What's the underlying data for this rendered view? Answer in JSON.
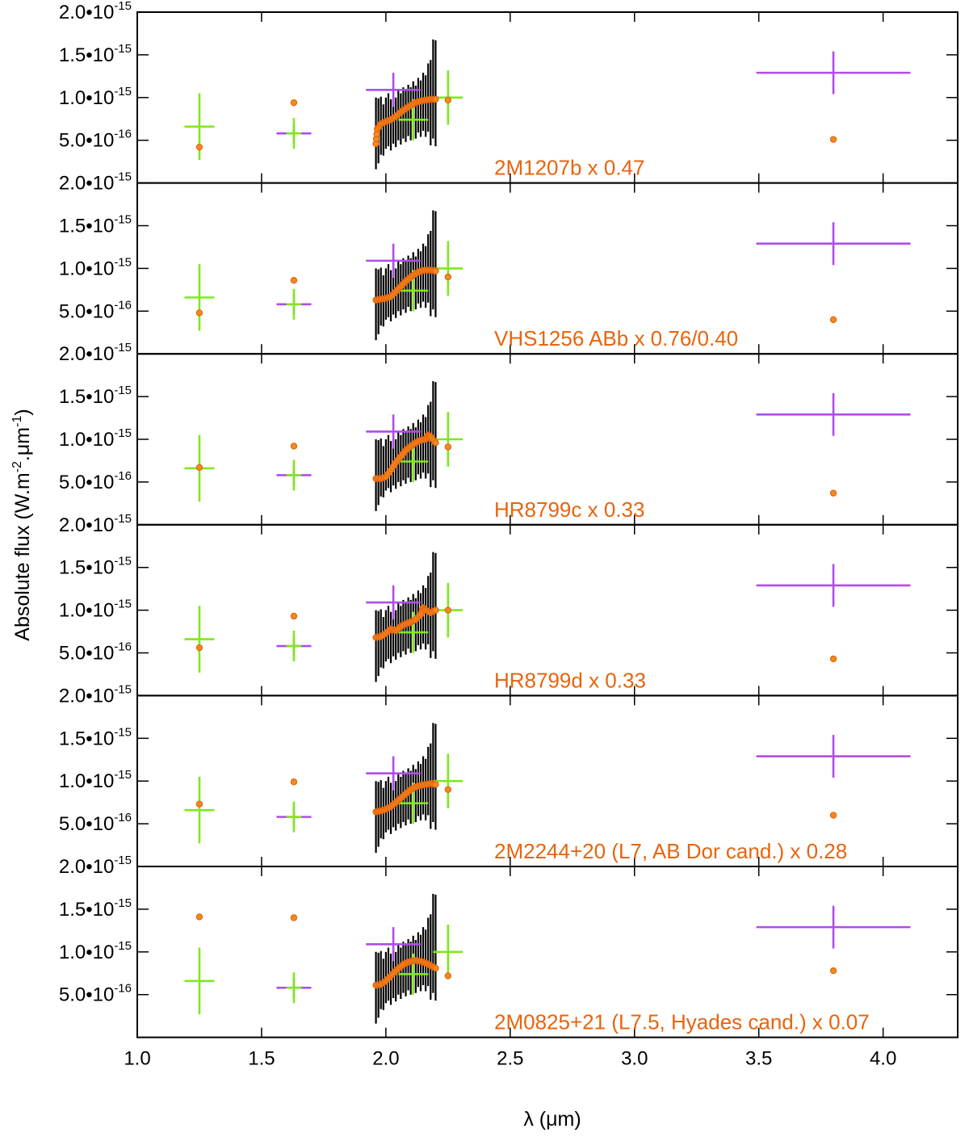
{
  "chart_data": {
    "type": "scatter",
    "xlabel": "λ (μm)",
    "ylabel_main": "Absolute flux (W.m",
    "ylabel_exp1": "-2",
    "ylabel_mid": ".μm",
    "ylabel_exp2": "-1",
    "ylabel_end": ")",
    "xlim": [
      1.0,
      4.3
    ],
    "ylim": [
      0,
      2e-15
    ],
    "x_ticks": [
      {
        "v": 1.0,
        "label": "1.0"
      },
      {
        "v": 1.5,
        "label": "1.5"
      },
      {
        "v": 2.0,
        "label": "2.0"
      },
      {
        "v": 2.5,
        "label": "2.5"
      },
      {
        "v": 3.0,
        "label": "3.0"
      },
      {
        "v": 3.5,
        "label": "3.5"
      },
      {
        "v": 4.0,
        "label": "4.0"
      }
    ],
    "y_ticks": [
      {
        "v": 5e-16,
        "mant": "5.0•10",
        "exp": "-16"
      },
      {
        "v": 1e-15,
        "mant": "1.0•10",
        "exp": "-15"
      },
      {
        "v": 1.5e-15,
        "mant": "1.5•10",
        "exp": "-15"
      },
      {
        "v": 2e-15,
        "mant": "2.0•10",
        "exp": "-15"
      }
    ],
    "colors": {
      "green": "#7fe81e",
      "purple": "#b04ce8",
      "orange": "#e8640e",
      "orange_fill": "#f08c1e",
      "black": "#000000"
    },
    "green_points": [
      {
        "x": 1.25,
        "xerr": 0.06,
        "y": 6.6e-16,
        "yerr": 3.9e-16
      },
      {
        "x": 1.63,
        "xerr": 0.03,
        "y": 5.8e-16,
        "yerr": 1.8e-16
      },
      {
        "x": 2.11,
        "xerr": 0.06,
        "y": 7.4e-16,
        "yerr": 2.4e-16
      },
      {
        "x": 2.25,
        "xerr": 0.06,
        "y": 1e-15,
        "yerr": 3.2e-16
      }
    ],
    "purple_points": [
      {
        "x": 1.63,
        "xerr": 0.07,
        "y": 5.8e-16,
        "yerr": 1.2e-16
      },
      {
        "x": 2.03,
        "xerr": 0.11,
        "y": 1.09e-15,
        "yerr": 2e-16
      },
      {
        "x": 3.8,
        "xerr": 0.31,
        "y": 1.29e-15,
        "yerr": 2.5e-16
      }
    ],
    "spectrum": [
      {
        "x": 1.96,
        "y": 5.8e-16,
        "e": 4.2e-16
      },
      {
        "x": 1.97,
        "y": 6.1e-16,
        "e": 3.8e-16
      },
      {
        "x": 1.98,
        "y": 6.7e-16,
        "e": 3.4e-16
      },
      {
        "x": 1.99,
        "y": 6.2e-16,
        "e": 3e-16
      },
      {
        "x": 2.0,
        "y": 7e-16,
        "e": 3e-16
      },
      {
        "x": 2.01,
        "y": 7.4e-16,
        "e": 3.1e-16
      },
      {
        "x": 2.02,
        "y": 6.8e-16,
        "e": 3e-16
      },
      {
        "x": 2.03,
        "y": 7.6e-16,
        "e": 3e-16
      },
      {
        "x": 2.04,
        "y": 7.1e-16,
        "e": 2.9e-16
      },
      {
        "x": 2.05,
        "y": 8e-16,
        "e": 3e-16
      },
      {
        "x": 2.06,
        "y": 7.5e-16,
        "e": 3e-16
      },
      {
        "x": 2.07,
        "y": 8.2e-16,
        "e": 3e-16
      },
      {
        "x": 2.08,
        "y": 7.8e-16,
        "e": 3e-16
      },
      {
        "x": 2.09,
        "y": 8.5e-16,
        "e": 3e-16
      },
      {
        "x": 2.1,
        "y": 8.1e-16,
        "e": 3.1e-16
      },
      {
        "x": 2.11,
        "y": 8.8e-16,
        "e": 3.1e-16
      },
      {
        "x": 2.12,
        "y": 8.3e-16,
        "e": 3.1e-16
      },
      {
        "x": 2.13,
        "y": 9.1e-16,
        "e": 3.2e-16
      },
      {
        "x": 2.14,
        "y": 8.7e-16,
        "e": 3.3e-16
      },
      {
        "x": 2.15,
        "y": 9.5e-16,
        "e": 3.4e-16
      },
      {
        "x": 2.16,
        "y": 9e-16,
        "e": 3.6e-16
      },
      {
        "x": 2.17,
        "y": 1e-15,
        "e": 4e-16
      },
      {
        "x": 2.18,
        "y": 9.4e-16,
        "e": 5e-16
      },
      {
        "x": 2.19,
        "y": 1.1e-15,
        "e": 5.8e-16
      },
      {
        "x": 2.2,
        "y": 1.05e-15,
        "e": 6.2e-16
      }
    ],
    "panels": [
      {
        "label": "2M1207b x 0.47",
        "model": [
          [
            1.96,
            4.6e-16
          ],
          [
            1.965,
            6.3e-16
          ],
          [
            1.98,
            6.9e-16
          ],
          [
            2.0,
            7.2e-16
          ],
          [
            2.02,
            7.4e-16
          ],
          [
            2.04,
            7.8e-16
          ],
          [
            2.06,
            8.3e-16
          ],
          [
            2.08,
            8.7e-16
          ],
          [
            2.1,
            9.1e-16
          ],
          [
            2.12,
            9.4e-16
          ],
          [
            2.14,
            9.6e-16
          ],
          [
            2.16,
            9.7e-16
          ],
          [
            2.18,
            9.8e-16
          ],
          [
            2.2,
            9.8e-16
          ]
        ],
        "phot": [
          [
            1.25,
            4.2e-16
          ],
          [
            1.63,
            9.4e-16
          ],
          [
            2.25,
            9.7e-16
          ],
          [
            3.8,
            5.1e-16
          ]
        ]
      },
      {
        "label": "VHS1256 ABb x 0.76/0.40",
        "model": [
          [
            1.96,
            6.3e-16
          ],
          [
            1.98,
            6.4e-16
          ],
          [
            2.0,
            6.5e-16
          ],
          [
            2.02,
            6.7e-16
          ],
          [
            2.04,
            7.3e-16
          ],
          [
            2.06,
            7.9e-16
          ],
          [
            2.08,
            8.5e-16
          ],
          [
            2.1,
            9e-16
          ],
          [
            2.12,
            9.4e-16
          ],
          [
            2.14,
            9.7e-16
          ],
          [
            2.16,
            9.8e-16
          ],
          [
            2.18,
            9.8e-16
          ],
          [
            2.2,
            9.7e-16
          ]
        ],
        "phot": [
          [
            1.25,
            4.8e-16
          ],
          [
            1.63,
            8.6e-16
          ],
          [
            2.25,
            9e-16
          ],
          [
            3.8,
            4e-16
          ]
        ]
      },
      {
        "label": "HR8799c x 0.33",
        "model": [
          [
            1.96,
            5.4e-16
          ],
          [
            1.98,
            5.4e-16
          ],
          [
            2.0,
            5.6e-16
          ],
          [
            2.02,
            6.4e-16
          ],
          [
            2.04,
            7.3e-16
          ],
          [
            2.06,
            8e-16
          ],
          [
            2.08,
            8.7e-16
          ],
          [
            2.1,
            9.2e-16
          ],
          [
            2.12,
            9.6e-16
          ],
          [
            2.14,
            9.9e-16
          ],
          [
            2.16,
            1e-15
          ],
          [
            2.17,
            1.05e-15
          ],
          [
            2.18,
            1.03e-15
          ],
          [
            2.2,
            9.6e-16
          ]
        ],
        "phot": [
          [
            1.25,
            6.7e-16
          ],
          [
            1.63,
            9.2e-16
          ],
          [
            2.25,
            9.1e-16
          ],
          [
            3.8,
            3.7e-16
          ]
        ]
      },
      {
        "label": "HR8799d x 0.33",
        "model": [
          [
            1.96,
            6.8e-16
          ],
          [
            1.98,
            6.9e-16
          ],
          [
            2.0,
            7.3e-16
          ],
          [
            2.02,
            7.8e-16
          ],
          [
            2.04,
            7.6e-16
          ],
          [
            2.06,
            8.1e-16
          ],
          [
            2.08,
            8.4e-16
          ],
          [
            2.1,
            8.6e-16
          ],
          [
            2.12,
            8.9e-16
          ],
          [
            2.14,
            9.5e-16
          ],
          [
            2.15,
            1.03e-15
          ],
          [
            2.16,
            1e-15
          ],
          [
            2.18,
            9.7e-16
          ],
          [
            2.2,
            1e-15
          ]
        ],
        "phot": [
          [
            1.25,
            5.6e-16
          ],
          [
            1.63,
            9.3e-16
          ],
          [
            2.25,
            1e-15
          ],
          [
            3.8,
            4.3e-16
          ]
        ]
      },
      {
        "label": "2M2244+20 (L7, AB Dor cand.) x 0.28",
        "model": [
          [
            1.96,
            6.4e-16
          ],
          [
            1.98,
            6.5e-16
          ],
          [
            2.0,
            6.7e-16
          ],
          [
            2.02,
            7e-16
          ],
          [
            2.04,
            7.5e-16
          ],
          [
            2.06,
            8e-16
          ],
          [
            2.08,
            8.5e-16
          ],
          [
            2.1,
            9e-16
          ],
          [
            2.12,
            9.3e-16
          ],
          [
            2.14,
            9.5e-16
          ],
          [
            2.16,
            9.6e-16
          ],
          [
            2.18,
            9.7e-16
          ],
          [
            2.2,
            9.6e-16
          ]
        ],
        "phot": [
          [
            1.25,
            7.3e-16
          ],
          [
            1.63,
            9.9e-16
          ],
          [
            2.25,
            9e-16
          ],
          [
            3.8,
            6e-16
          ]
        ]
      },
      {
        "label": "2M0825+21 (L7.5, Hyades cand.) x 0.07",
        "model": [
          [
            1.96,
            6.1e-16
          ],
          [
            1.98,
            6.2e-16
          ],
          [
            2.0,
            6.6e-16
          ],
          [
            2.02,
            7.2e-16
          ],
          [
            2.04,
            7.8e-16
          ],
          [
            2.06,
            8.3e-16
          ],
          [
            2.08,
            8.7e-16
          ],
          [
            2.1,
            8.9e-16
          ],
          [
            2.12,
            9e-16
          ],
          [
            2.14,
            8.9e-16
          ],
          [
            2.16,
            8.7e-16
          ],
          [
            2.18,
            8.4e-16
          ],
          [
            2.2,
            8.1e-16
          ]
        ],
        "phot": [
          [
            1.25,
            1.41e-15
          ],
          [
            1.63,
            1.4e-15
          ],
          [
            2.25,
            7.2e-16
          ],
          [
            3.8,
            7.8e-16
          ]
        ]
      }
    ]
  }
}
